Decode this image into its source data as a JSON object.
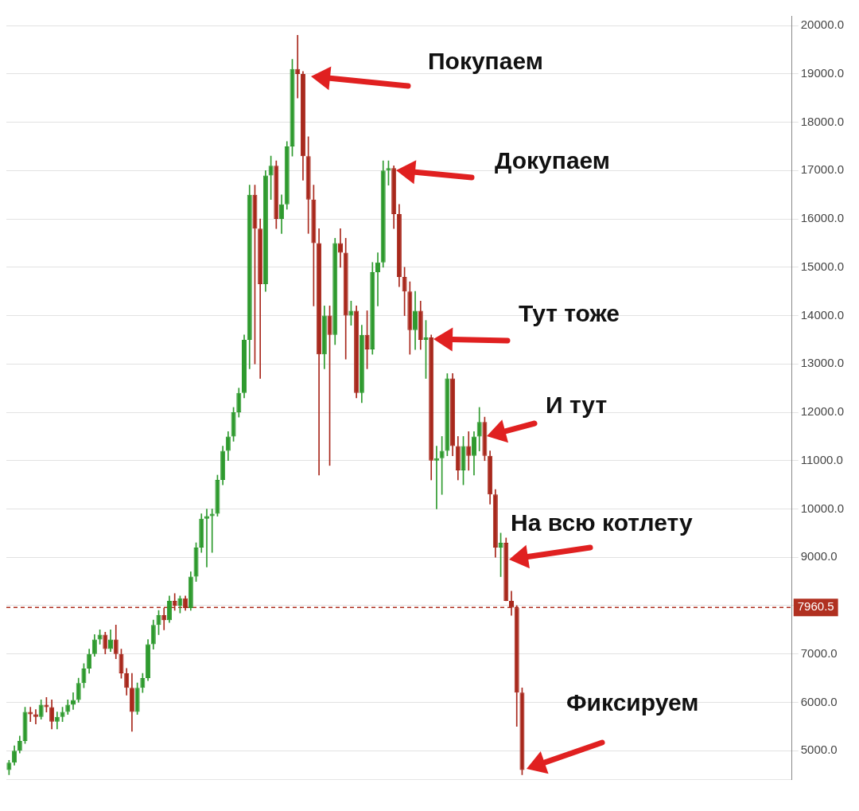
{
  "chart_data": {
    "type": "candlestick",
    "categories": [
      null,
      null,
      null,
      null,
      null,
      null,
      null,
      null,
      null,
      null,
      null,
      null,
      null,
      null,
      null,
      null,
      null,
      null,
      null,
      null,
      null,
      null,
      null,
      null,
      null,
      null,
      null,
      null,
      null,
      null,
      null,
      null,
      null,
      null,
      null,
      null,
      null,
      null,
      null,
      null,
      null,
      null,
      null,
      null,
      null,
      null,
      null,
      null,
      null,
      null,
      null,
      null,
      null,
      null,
      null,
      null,
      null,
      null,
      null,
      null,
      null,
      null,
      null,
      null,
      null,
      null,
      null,
      null,
      null,
      null,
      null,
      null,
      null,
      null,
      null,
      null,
      null,
      null,
      null,
      null,
      null,
      null,
      null,
      null,
      null,
      null,
      null,
      null,
      null,
      null,
      null,
      null,
      null,
      null,
      null,
      null,
      null,
      null,
      null,
      null,
      null,
      null,
      null,
      null,
      null,
      null,
      null,
      null,
      null,
      null,
      null,
      null,
      null,
      null,
      null,
      null,
      null,
      null,
      null,
      null,
      null,
      null,
      null,
      null,
      null,
      null,
      null,
      null,
      null,
      null,
      null,
      null,
      null,
      null,
      null,
      null,
      null,
      null,
      null,
      null,
      null,
      null,
      null,
      null,
      null,
      null,
      null
    ],
    "ohlc": [
      [
        4600,
        4800,
        4500,
        4750
      ],
      [
        4750,
        5100,
        4700,
        5000
      ],
      [
        5000,
        5300,
        4950,
        5200
      ],
      [
        5200,
        5900,
        5150,
        5800
      ],
      [
        5800,
        5900,
        5600,
        5750
      ],
      [
        5750,
        5850,
        5550,
        5700
      ],
      [
        5700,
        6050,
        5650,
        5950
      ],
      [
        5950,
        6100,
        5800,
        5900
      ],
      [
        5900,
        6050,
        5450,
        5600
      ],
      [
        5600,
        5800,
        5450,
        5700
      ],
      [
        5700,
        5900,
        5600,
        5800
      ],
      [
        5800,
        6050,
        5750,
        5950
      ],
      [
        5950,
        6200,
        5850,
        6050
      ],
      [
        6050,
        6500,
        6000,
        6400
      ],
      [
        6400,
        6800,
        6300,
        6700
      ],
      [
        6700,
        7100,
        6600,
        7000
      ],
      [
        7000,
        7400,
        6950,
        7300
      ],
      [
        7300,
        7500,
        7200,
        7400
      ],
      [
        7400,
        7450,
        7000,
        7100
      ],
      [
        7100,
        7500,
        7050,
        7300
      ],
      [
        7300,
        7600,
        6900,
        7000
      ],
      [
        7000,
        7100,
        6500,
        6600
      ],
      [
        6600,
        6700,
        6150,
        6300
      ],
      [
        6300,
        6600,
        5400,
        5800
      ],
      [
        5800,
        6400,
        5750,
        6300
      ],
      [
        6300,
        6600,
        6200,
        6500
      ],
      [
        6500,
        7300,
        6450,
        7200
      ],
      [
        7200,
        7700,
        7100,
        7600
      ],
      [
        7600,
        7900,
        7400,
        7800
      ],
      [
        7800,
        7950,
        7500,
        7700
      ],
      [
        7700,
        8200,
        7650,
        8100
      ],
      [
        8100,
        8250,
        7900,
        8000
      ],
      [
        8000,
        8200,
        7850,
        8150
      ],
      [
        8150,
        8200,
        7900,
        7950
      ],
      [
        7950,
        8700,
        7900,
        8600
      ],
      [
        8600,
        9300,
        8500,
        9200
      ],
      [
        9200,
        9900,
        9100,
        9800
      ],
      [
        9800,
        10000,
        8800,
        9850
      ],
      [
        9850,
        10000,
        9100,
        9900
      ],
      [
        9900,
        10700,
        9850,
        10600
      ],
      [
        10600,
        11300,
        10500,
        11200
      ],
      [
        11200,
        11600,
        11000,
        11500
      ],
      [
        11500,
        12100,
        11400,
        12000
      ],
      [
        12000,
        12500,
        11900,
        12400
      ],
      [
        12400,
        13600,
        12300,
        13500
      ],
      [
        13500,
        16700,
        12900,
        16500
      ],
      [
        16500,
        16700,
        13000,
        15800
      ],
      [
        15800,
        16000,
        12700,
        14650
      ],
      [
        14650,
        17000,
        14500,
        16900
      ],
      [
        16900,
        17300,
        16400,
        17100
      ],
      [
        17100,
        17200,
        15800,
        16000
      ],
      [
        16000,
        16500,
        15700,
        16300
      ],
      [
        16300,
        17600,
        16200,
        17500
      ],
      [
        17500,
        19300,
        17300,
        19100
      ],
      [
        19100,
        19800,
        18500,
        19000
      ],
      [
        19000,
        19050,
        16800,
        17300
      ],
      [
        17300,
        17700,
        15700,
        16400
      ],
      [
        16400,
        16700,
        14200,
        15500
      ],
      [
        15500,
        15800,
        10700,
        13200
      ],
      [
        13200,
        14200,
        12900,
        14000
      ],
      [
        14000,
        14200,
        10900,
        13600
      ],
      [
        13600,
        15600,
        13400,
        15500
      ],
      [
        15500,
        15800,
        15000,
        15300
      ],
      [
        15300,
        15600,
        13100,
        14000
      ],
      [
        14000,
        14300,
        13800,
        14100
      ],
      [
        14100,
        14200,
        12300,
        12400
      ],
      [
        12400,
        13800,
        12200,
        13600
      ],
      [
        13600,
        14100,
        12900,
        13300
      ],
      [
        13300,
        15100,
        13200,
        14900
      ],
      [
        14900,
        15300,
        14200,
        15100
      ],
      [
        15100,
        17200,
        15000,
        17000
      ],
      [
        17000,
        17200,
        16700,
        17050
      ],
      [
        17050,
        17100,
        15800,
        16100
      ],
      [
        16100,
        16300,
        14600,
        14800
      ],
      [
        14800,
        15000,
        14000,
        14500
      ],
      [
        14500,
        14700,
        13200,
        13700
      ],
      [
        13700,
        14500,
        13300,
        14100
      ],
      [
        14100,
        14300,
        13300,
        13500
      ],
      [
        13500,
        13900,
        12700,
        13550
      ],
      [
        13550,
        13600,
        10600,
        11000
      ],
      [
        11000,
        11300,
        10000,
        11050
      ],
      [
        11050,
        11500,
        10300,
        11200
      ],
      [
        11200,
        12800,
        11100,
        12700
      ],
      [
        12700,
        12800,
        11100,
        11300
      ],
      [
        11300,
        11500,
        10600,
        10800
      ],
      [
        10800,
        11500,
        10500,
        11300
      ],
      [
        11300,
        11600,
        10800,
        11100
      ],
      [
        11100,
        11600,
        10700,
        11500
      ],
      [
        11500,
        12100,
        11200,
        11800
      ],
      [
        11800,
        11900,
        11000,
        11100
      ],
      [
        11100,
        11200,
        10100,
        10300
      ],
      [
        10300,
        10400,
        9000,
        9200
      ],
      [
        9200,
        9500,
        8600,
        9300
      ],
      [
        9300,
        9400,
        8100,
        8100
      ],
      [
        8100,
        8300,
        7800,
        7960
      ],
      [
        7960,
        8000,
        5500,
        6200
      ],
      [
        6200,
        6300,
        4500,
        4600
      ],
      null,
      null,
      null,
      null,
      null,
      null,
      null,
      null,
      null,
      null,
      null,
      null,
      null,
      null,
      null,
      null,
      null,
      null,
      null,
      null,
      null,
      null,
      null,
      null,
      null,
      null,
      null,
      null,
      null,
      null,
      null,
      null,
      null,
      null,
      null,
      null,
      null,
      null,
      null,
      null,
      null,
      null,
      null,
      null,
      null,
      null,
      null,
      null,
      null,
      null
    ],
    "colors": [
      "#2e9a2e",
      "#2e9a2e",
      "#2e9a2e",
      "#2e9a2e",
      "#a8281c",
      "#a8281c",
      "#2e9a2e",
      "#a8281c",
      "#a8281c",
      "#2e9a2e",
      "#2e9a2e",
      "#2e9a2e",
      "#2e9a2e",
      "#2e9a2e",
      "#2e9a2e",
      "#2e9a2e",
      "#2e9a2e",
      "#2e9a2e",
      "#a8281c",
      "#2e9a2e",
      "#a8281c",
      "#a8281c",
      "#a8281c",
      "#a8281c",
      "#2e9a2e",
      "#2e9a2e",
      "#2e9a2e",
      "#2e9a2e",
      "#2e9a2e",
      "#a8281c",
      "#2e9a2e",
      "#a8281c",
      "#2e9a2e",
      "#a8281c",
      "#2e9a2e",
      "#2e9a2e",
      "#2e9a2e",
      "#2e9a2e",
      "#2e9a2e",
      "#2e9a2e",
      "#2e9a2e",
      "#2e9a2e",
      "#2e9a2e",
      "#2e9a2e",
      "#2e9a2e",
      "#2e9a2e",
      "#a8281c",
      "#a8281c",
      "#2e9a2e",
      "#2e9a2e",
      "#a8281c",
      "#2e9a2e",
      "#2e9a2e",
      "#2e9a2e",
      "#a8281c",
      "#a8281c",
      "#a8281c",
      "#a8281c",
      "#a8281c",
      "#2e9a2e",
      "#a8281c",
      "#2e9a2e",
      "#a8281c",
      "#a8281c",
      "#2e9a2e",
      "#a8281c",
      "#2e9a2e",
      "#a8281c",
      "#2e9a2e",
      "#2e9a2e",
      "#2e9a2e",
      "#2e9a2e",
      "#a8281c",
      "#a8281c",
      "#a8281c",
      "#a8281c",
      "#2e9a2e",
      "#a8281c",
      "#2e9a2e",
      "#a8281c",
      "#2e9a2e",
      "#2e9a2e",
      "#2e9a2e",
      "#a8281c",
      "#a8281c",
      "#2e9a2e",
      "#a8281c",
      "#2e9a2e",
      "#2e9a2e",
      "#a8281c",
      "#a8281c",
      "#a8281c",
      "#2e9a2e",
      "#a8281c",
      "#a8281c",
      "#a8281c",
      "#a8281c",
      null,
      null,
      null,
      null,
      null,
      null,
      null,
      null,
      null,
      null,
      null,
      null,
      null,
      null,
      null,
      null,
      null,
      null,
      null,
      null,
      null,
      null,
      null,
      null,
      null,
      null,
      null,
      null,
      null,
      null,
      null,
      null,
      null,
      null,
      null,
      null,
      null,
      null,
      null,
      null,
      null,
      null,
      null,
      null,
      null,
      null,
      null,
      null,
      null,
      null
    ],
    "ylim": [
      4400,
      20200
    ],
    "yticks": [
      {
        "value": 5000,
        "label": "5000.0"
      },
      {
        "value": 6000,
        "label": "6000.0"
      },
      {
        "value": 7000,
        "label": "7000.0"
      },
      {
        "value": 8000,
        "label": null
      },
      {
        "value": 9000,
        "label": "9000.0"
      },
      {
        "value": 10000,
        "label": "10000.0"
      },
      {
        "value": 11000,
        "label": "11000.0"
      },
      {
        "value": 12000,
        "label": "12000.0"
      },
      {
        "value": 13000,
        "label": "13000.0"
      },
      {
        "value": 14000,
        "label": "14000.0"
      },
      {
        "value": 15000,
        "label": "15000.0"
      },
      {
        "value": 16000,
        "label": "16000.0"
      },
      {
        "value": 17000,
        "label": "17000.0"
      },
      {
        "value": 18000,
        "label": "18000.0"
      },
      {
        "value": 19000,
        "label": "19000.0"
      },
      {
        "value": 20000,
        "label": "20000.0"
      }
    ],
    "grid": "y",
    "legend": false,
    "ref_lines": [
      {
        "axis": "y",
        "value": 7960.5,
        "label": "7960.5",
        "color": "#b03020",
        "line_style": "dashed"
      }
    ],
    "annotations": [
      "Покупаем",
      "Докупаем",
      "Тут тоже",
      "И тут",
      "На всю котлету",
      "Фиксируем"
    ]
  }
}
